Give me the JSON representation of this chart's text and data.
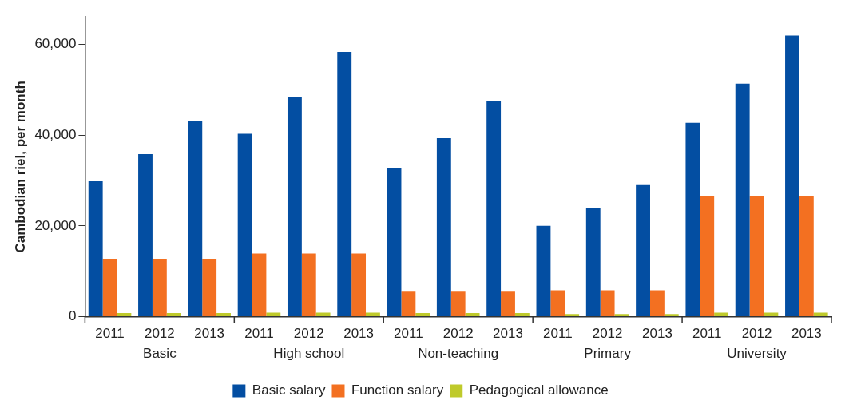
{
  "chart_data": {
    "type": "bar",
    "ylabel": "Cambodian riel, per month",
    "categories": [
      "2011",
      "2012",
      "2013",
      "2011",
      "2012",
      "2013",
      "2011",
      "2012",
      "2013",
      "2011",
      "2012",
      "2013",
      "2011",
      "2012",
      "2013"
    ],
    "annotations": [
      "Basic",
      "High school",
      "Non-teaching",
      "Primary",
      "University"
    ],
    "series": [
      {
        "name": "Basic salary",
        "color": "#034ea2",
        "values": [
          29800,
          35800,
          43200,
          40300,
          48300,
          58300,
          32700,
          39300,
          47500,
          20000,
          23900,
          29000,
          42700,
          51300,
          61900
        ]
      },
      {
        "name": "Function salary",
        "color": "#f37021",
        "values": [
          12600,
          12600,
          12600,
          13900,
          13900,
          13900,
          5500,
          5500,
          5500,
          5800,
          5800,
          5800,
          26500,
          26500,
          26500
        ]
      },
      {
        "name": "Pedagogical allowance",
        "color": "#bfca2b",
        "values": [
          800,
          800,
          800,
          900,
          900,
          900,
          800,
          800,
          800,
          600,
          600,
          600,
          900,
          900,
          900
        ]
      }
    ],
    "ylim": [
      0,
      66000
    ],
    "yticks": [
      0,
      {
        "value": 20000,
        "label": "20,000"
      },
      {
        "value": 40000,
        "label": "40,000"
      },
      {
        "value": 60000,
        "label": "60,000"
      }
    ],
    "grid": false,
    "legend": "bottom"
  }
}
